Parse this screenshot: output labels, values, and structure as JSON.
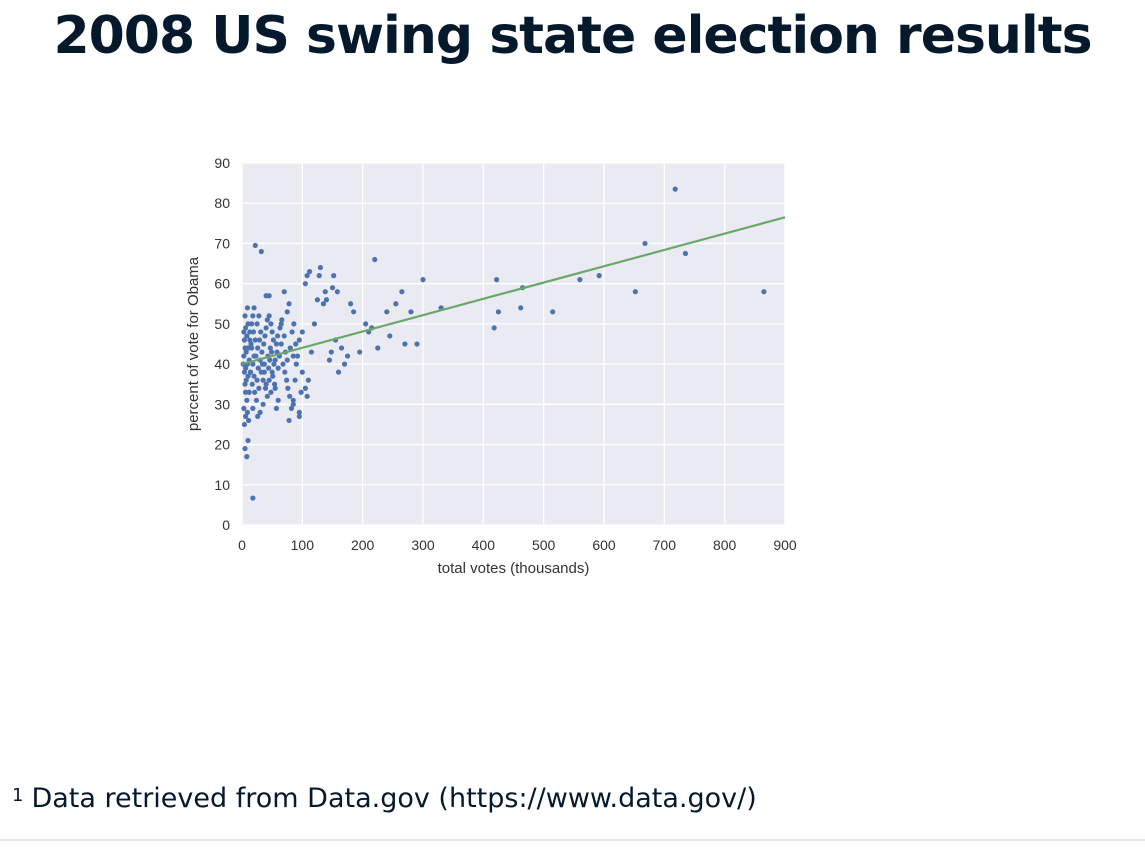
{
  "slide": {
    "title": "2008 US swing state election results"
  },
  "footnote": {
    "marker": "1",
    "text": "Data retrieved from Data.gov (https://www.data.gov/)"
  },
  "chart_data": {
    "type": "scatter",
    "title": "",
    "xlabel": "total votes (thousands)",
    "ylabel": "percent of vote for Obama",
    "xlim": [
      0,
      900
    ],
    "ylim": [
      0,
      90
    ],
    "xticks": [
      "0",
      "100",
      "200",
      "300",
      "400",
      "500",
      "600",
      "700",
      "800",
      "900"
    ],
    "yticks": [
      "0",
      "10",
      "20",
      "30",
      "40",
      "50",
      "60",
      "70",
      "80",
      "90"
    ],
    "grid": true,
    "legend": "none",
    "colors": {
      "points": "#4c72b0",
      "fit_line": "#6aa86a",
      "plot_background": "#eaeaf2",
      "grid": "#ffffff"
    },
    "fit_line": {
      "x": [
        0,
        900
      ],
      "y": [
        40,
        76.5
      ]
    },
    "points": [
      [
        5,
        19
      ],
      [
        8,
        17
      ],
      [
        10,
        21
      ],
      [
        18,
        6.7
      ],
      [
        22,
        69.5
      ],
      [
        32,
        68
      ],
      [
        40,
        57
      ],
      [
        45,
        57
      ],
      [
        4,
        25
      ],
      [
        6,
        27
      ],
      [
        3,
        29
      ],
      [
        8,
        31
      ],
      [
        12,
        33
      ],
      [
        5,
        35
      ],
      [
        7,
        36
      ],
      [
        10,
        37
      ],
      [
        14,
        38
      ],
      [
        6,
        39
      ],
      [
        9,
        40
      ],
      [
        12,
        41
      ],
      [
        3,
        42
      ],
      [
        7,
        43
      ],
      [
        10,
        44
      ],
      [
        15,
        45
      ],
      [
        4,
        46
      ],
      [
        8,
        47
      ],
      [
        13,
        48
      ],
      [
        6,
        49
      ],
      [
        10,
        50
      ],
      [
        5,
        52
      ],
      [
        9,
        54
      ],
      [
        14,
        38
      ],
      [
        18,
        40
      ],
      [
        20,
        42
      ],
      [
        16,
        44
      ],
      [
        22,
        46
      ],
      [
        19,
        48
      ],
      [
        25,
        50
      ],
      [
        28,
        52
      ],
      [
        17,
        35
      ],
      [
        21,
        33
      ],
      [
        24,
        31
      ],
      [
        18,
        29
      ],
      [
        26,
        27
      ],
      [
        30,
        28
      ],
      [
        35,
        30
      ],
      [
        20,
        37
      ],
      [
        27,
        39
      ],
      [
        30,
        41
      ],
      [
        33,
        43
      ],
      [
        36,
        45
      ],
      [
        38,
        47
      ],
      [
        40,
        49
      ],
      [
        42,
        51
      ],
      [
        45,
        52
      ],
      [
        48,
        50
      ],
      [
        50,
        48
      ],
      [
        32,
        38
      ],
      [
        37,
        40
      ],
      [
        43,
        42
      ],
      [
        47,
        44
      ],
      [
        52,
        46
      ],
      [
        55,
        41
      ],
      [
        58,
        43
      ],
      [
        45,
        36
      ],
      [
        50,
        38
      ],
      [
        53,
        40
      ],
      [
        60,
        39
      ],
      [
        62,
        42
      ],
      [
        65,
        45
      ],
      [
        70,
        47
      ],
      [
        72,
        43
      ],
      [
        75,
        41
      ],
      [
        78,
        26
      ],
      [
        82,
        29
      ],
      [
        85,
        31
      ],
      [
        88,
        36
      ],
      [
        90,
        40
      ],
      [
        92,
        42
      ],
      [
        95,
        27
      ],
      [
        98,
        33
      ],
      [
        100,
        48
      ],
      [
        70,
        58
      ],
      [
        78,
        55
      ],
      [
        75,
        53
      ],
      [
        65,
        50
      ],
      [
        80,
        44
      ],
      [
        85,
        42
      ],
      [
        95,
        46
      ],
      [
        55,
        34
      ],
      [
        48,
        33
      ],
      [
        40,
        35
      ],
      [
        35,
        36
      ],
      [
        105,
        60
      ],
      [
        108,
        62
      ],
      [
        112,
        63
      ],
      [
        115,
        43
      ],
      [
        120,
        50
      ],
      [
        125,
        56
      ],
      [
        128,
        62
      ],
      [
        130,
        64
      ],
      [
        135,
        55
      ],
      [
        138,
        58
      ],
      [
        140,
        56
      ],
      [
        145,
        41
      ],
      [
        148,
        43
      ],
      [
        150,
        59
      ],
      [
        152,
        62
      ],
      [
        155,
        46
      ],
      [
        158,
        58
      ],
      [
        160,
        38
      ],
      [
        165,
        44
      ],
      [
        170,
        40
      ],
      [
        175,
        42
      ],
      [
        180,
        55
      ],
      [
        185,
        53
      ],
      [
        195,
        43
      ],
      [
        205,
        50
      ],
      [
        210,
        48
      ],
      [
        215,
        49
      ],
      [
        220,
        66
      ],
      [
        225,
        44
      ],
      [
        240,
        53
      ],
      [
        245,
        47
      ],
      [
        255,
        55
      ],
      [
        265,
        58
      ],
      [
        270,
        45
      ],
      [
        280,
        53
      ],
      [
        290,
        45
      ],
      [
        300,
        61
      ],
      [
        330,
        54
      ],
      [
        418,
        49
      ],
      [
        422,
        61
      ],
      [
        425,
        53
      ],
      [
        462,
        54
      ],
      [
        465,
        59
      ],
      [
        515,
        53
      ],
      [
        560,
        61
      ],
      [
        592,
        62
      ],
      [
        652,
        58
      ],
      [
        668,
        70
      ],
      [
        718,
        83.5
      ],
      [
        735,
        67.5
      ],
      [
        865,
        58
      ],
      [
        100,
        38
      ],
      [
        105,
        34
      ],
      [
        108,
        32
      ],
      [
        110,
        36
      ],
      [
        95,
        28
      ],
      [
        85,
        30
      ],
      [
        60,
        31
      ],
      [
        57,
        29
      ],
      [
        25,
        36
      ],
      [
        28,
        34
      ],
      [
        3,
        48
      ],
      [
        5,
        44
      ],
      [
        2,
        40
      ],
      [
        4,
        38
      ],
      [
        6,
        33
      ],
      [
        9,
        28
      ],
      [
        11,
        26
      ],
      [
        13,
        46
      ],
      [
        16,
        50
      ],
      [
        18,
        52
      ],
      [
        20,
        54
      ],
      [
        23,
        42
      ],
      [
        26,
        44
      ],
      [
        29,
        46
      ],
      [
        31,
        48
      ],
      [
        34,
        40
      ],
      [
        37,
        38
      ],
      [
        39,
        34
      ],
      [
        42,
        32
      ],
      [
        44,
        39
      ],
      [
        46,
        41
      ],
      [
        49,
        43
      ],
      [
        51,
        37
      ],
      [
        54,
        35
      ],
      [
        57,
        45
      ],
      [
        59,
        47
      ],
      [
        63,
        49
      ],
      [
        66,
        51
      ],
      [
        68,
        40
      ],
      [
        71,
        38
      ],
      [
        74,
        36
      ],
      [
        76,
        34
      ],
      [
        79,
        32
      ],
      [
        83,
        48
      ],
      [
        86,
        50
      ],
      [
        89,
        45
      ]
    ]
  }
}
